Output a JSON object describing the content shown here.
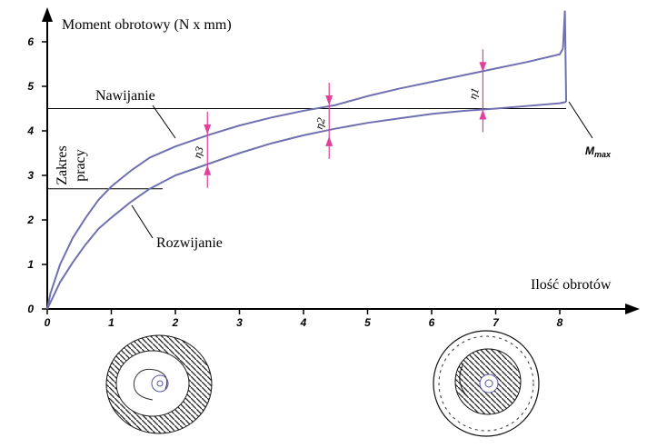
{
  "chart_data": {
    "type": "line",
    "xlabel": "Ilość obrotów",
    "ylabel": "Moment obrotowy (N x mm)",
    "xlim": [
      0,
      9.1
    ],
    "ylim": [
      0,
      6.6
    ],
    "x_ticks": [
      "0",
      "1",
      "2",
      "3",
      "4",
      "5",
      "6",
      "7",
      "8"
    ],
    "y_ticks": [
      "0",
      "1",
      "2",
      "3",
      "4",
      "5",
      "6"
    ],
    "series": [
      {
        "name": "Nawijanie",
        "x": [
          0,
          0.05,
          0.2,
          0.4,
          0.6,
          0.8,
          1.0,
          1.3,
          1.6,
          2.0,
          2.5,
          3.0,
          3.5,
          4.0,
          4.5,
          5.0,
          5.5,
          6.0,
          6.5,
          7.0,
          7.5,
          8.0,
          8.05
        ],
        "y": [
          0,
          0.35,
          1.0,
          1.6,
          2.05,
          2.45,
          2.75,
          3.1,
          3.4,
          3.65,
          3.9,
          4.12,
          4.3,
          4.45,
          4.58,
          4.78,
          4.95,
          5.1,
          5.25,
          5.4,
          5.55,
          5.72,
          5.85
        ]
      },
      {
        "name": "Rozwijanie",
        "x": [
          0,
          0.05,
          0.2,
          0.4,
          0.6,
          0.8,
          1.0,
          1.3,
          1.6,
          2.0,
          2.5,
          3.0,
          3.5,
          4.0,
          4.5,
          5.0,
          5.5,
          6.0,
          6.5,
          7.0,
          7.5,
          8.0,
          8.1
        ],
        "y": [
          0,
          0.15,
          0.6,
          1.05,
          1.45,
          1.8,
          2.05,
          2.4,
          2.7,
          3.0,
          3.25,
          3.5,
          3.72,
          3.9,
          4.05,
          4.18,
          4.28,
          4.38,
          4.45,
          4.5,
          4.56,
          4.62,
          4.65
        ]
      }
    ],
    "spike": {
      "x": [
        8.05,
        8.08,
        8.1
      ],
      "y": [
        5.85,
        6.7,
        4.65
      ]
    },
    "working_range": {
      "low": 2.7,
      "high": 4.5,
      "label": "Zakres pracy"
    },
    "efficiency_markers": [
      {
        "label": "η3",
        "x": 2.5,
        "low": 3.25,
        "high": 3.9
      },
      {
        "label": "η2",
        "x": 4.4,
        "low": 3.9,
        "high": 4.55
      },
      {
        "label": "η1",
        "x": 6.8,
        "low": 4.5,
        "high": 5.3
      }
    ],
    "annotations": [
      {
        "text": "Nawijanie"
      },
      {
        "text": "Rozwijanie"
      },
      {
        "text": "Mmax"
      }
    ],
    "colors": {
      "curve": "#7070b0",
      "marker": "#e0409a",
      "axis": "#000000"
    },
    "grid": false
  }
}
